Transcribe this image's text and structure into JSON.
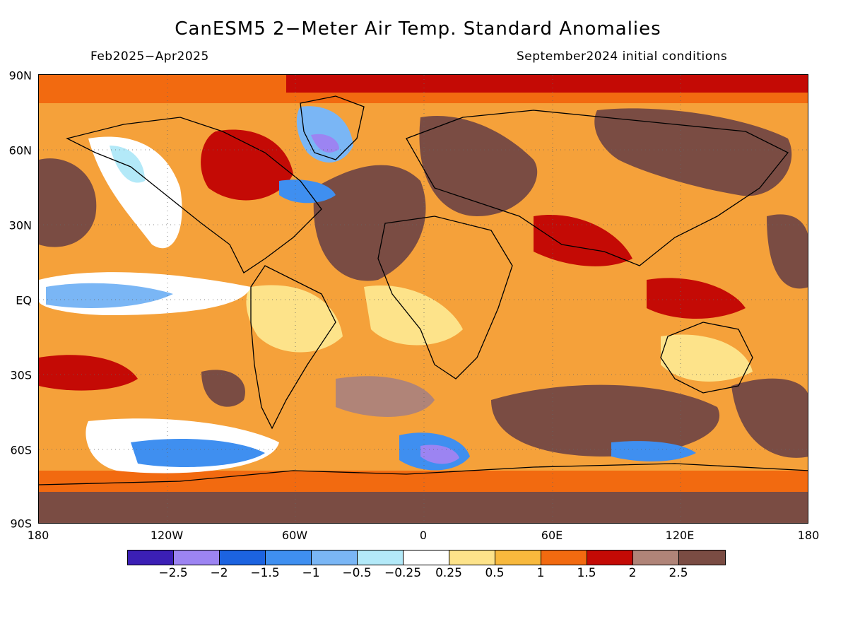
{
  "title": "CanESM5 2−Meter Air Temp. Standard Anomalies",
  "period": "Feb2025−Apr2025",
  "initial_conditions": "September2024 initial conditions",
  "lat_labels": [
    "90N",
    "60N",
    "30N",
    "EQ",
    "30S",
    "60S",
    "90S"
  ],
  "lon_labels": [
    "180",
    "120W",
    "60W",
    "0",
    "60E",
    "120E",
    "180"
  ],
  "colorbar": {
    "colors": [
      "#3b1fb5",
      "#9c84f2",
      "#1c63e0",
      "#3f8ff0",
      "#7ab6f5",
      "#b3e9f8",
      "#ffffff",
      "#fde38a",
      "#f8b93d",
      "#f26a10",
      "#c40a05",
      "#b08478",
      "#7a4c43"
    ],
    "labels": [
      "−2.5",
      "−2",
      "−1.5",
      "−1",
      "−0.5",
      "−0.25",
      "0.25",
      "0.5",
      "1",
      "1.5",
      "2",
      "2.5"
    ]
  }
}
